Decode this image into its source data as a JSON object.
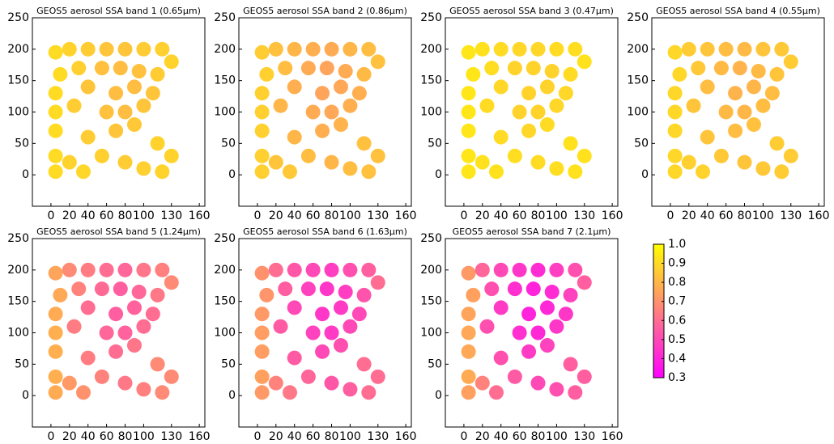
{
  "chart_data": [
    {
      "type": "scatter",
      "title": "GEOS5 aerosol SSA band 1 (0.65µm)",
      "x": [
        5,
        20,
        40,
        60,
        80,
        100,
        120,
        130,
        10,
        30,
        55,
        75,
        95,
        115,
        5,
        40,
        70,
        90,
        110,
        5,
        25,
        60,
        80,
        100,
        5,
        40,
        70,
        90,
        115,
        5,
        20,
        55,
        80,
        100,
        130,
        5,
        35,
        120
      ],
      "y": [
        195,
        200,
        200,
        200,
        200,
        200,
        200,
        180,
        160,
        170,
        170,
        170,
        165,
        160,
        130,
        140,
        130,
        140,
        130,
        100,
        110,
        100,
        100,
        110,
        70,
        60,
        70,
        80,
        50,
        30,
        20,
        30,
        20,
        10,
        30,
        5,
        5,
        5
      ],
      "values": [
        0.9,
        0.88,
        0.86,
        0.84,
        0.84,
        0.86,
        0.87,
        0.88,
        0.9,
        0.87,
        0.83,
        0.82,
        0.83,
        0.86,
        0.9,
        0.84,
        0.82,
        0.82,
        0.84,
        0.9,
        0.86,
        0.83,
        0.82,
        0.84,
        0.9,
        0.86,
        0.84,
        0.85,
        0.88,
        0.9,
        0.88,
        0.87,
        0.86,
        0.87,
        0.88,
        0.9,
        0.89,
        0.88
      ],
      "xlim": [
        -20,
        166
      ],
      "ylim": [
        -50,
        250
      ],
      "xticks": [
        0,
        20,
        40,
        60,
        80,
        100,
        130,
        160
      ],
      "yticks": [
        0,
        50,
        100,
        150,
        200,
        250
      ]
    },
    {
      "type": "scatter",
      "title": "GEOS5 aerosol SSA band 2 (0.86µm)",
      "x": [
        5,
        20,
        40,
        60,
        80,
        100,
        120,
        130,
        10,
        30,
        55,
        75,
        95,
        115,
        5,
        40,
        70,
        90,
        110,
        5,
        25,
        60,
        80,
        100,
        5,
        40,
        70,
        90,
        115,
        5,
        20,
        55,
        80,
        100,
        130,
        5,
        35,
        120
      ],
      "y": [
        195,
        200,
        200,
        200,
        200,
        200,
        200,
        180,
        160,
        170,
        170,
        170,
        165,
        160,
        130,
        140,
        130,
        140,
        130,
        100,
        110,
        100,
        100,
        110,
        70,
        60,
        70,
        80,
        50,
        30,
        20,
        30,
        20,
        10,
        30,
        5,
        5,
        5
      ],
      "values": [
        0.86,
        0.83,
        0.8,
        0.78,
        0.77,
        0.8,
        0.82,
        0.83,
        0.87,
        0.82,
        0.77,
        0.75,
        0.77,
        0.81,
        0.87,
        0.78,
        0.75,
        0.76,
        0.78,
        0.87,
        0.8,
        0.77,
        0.76,
        0.78,
        0.87,
        0.8,
        0.78,
        0.79,
        0.83,
        0.87,
        0.84,
        0.82,
        0.8,
        0.82,
        0.83,
        0.87,
        0.85,
        0.83
      ],
      "xlim": [
        -20,
        166
      ],
      "ylim": [
        -50,
        250
      ],
      "xticks": [
        0,
        20,
        40,
        60,
        80,
        100,
        130,
        160
      ],
      "yticks": [
        0,
        50,
        100,
        150,
        200,
        250
      ]
    },
    {
      "type": "scatter",
      "title": "GEOS5 aerosol SSA band 3 (0.47µm)",
      "x": [
        5,
        20,
        40,
        60,
        80,
        100,
        120,
        130,
        10,
        30,
        55,
        75,
        95,
        115,
        5,
        40,
        70,
        90,
        110,
        5,
        25,
        60,
        80,
        100,
        5,
        40,
        70,
        90,
        115,
        5,
        20,
        55,
        80,
        100,
        130,
        5,
        35,
        120
      ],
      "y": [
        195,
        200,
        200,
        200,
        200,
        200,
        200,
        180,
        160,
        170,
        170,
        170,
        165,
        160,
        130,
        140,
        130,
        140,
        130,
        100,
        110,
        100,
        100,
        110,
        70,
        60,
        70,
        80,
        50,
        30,
        20,
        30,
        20,
        10,
        30,
        5,
        5,
        5
      ],
      "values": [
        0.93,
        0.92,
        0.9,
        0.89,
        0.89,
        0.9,
        0.91,
        0.92,
        0.93,
        0.91,
        0.88,
        0.88,
        0.88,
        0.9,
        0.93,
        0.89,
        0.88,
        0.88,
        0.89,
        0.93,
        0.9,
        0.88,
        0.88,
        0.89,
        0.93,
        0.9,
        0.89,
        0.9,
        0.92,
        0.93,
        0.92,
        0.91,
        0.9,
        0.91,
        0.92,
        0.93,
        0.92,
        0.92
      ],
      "xlim": [
        -20,
        166
      ],
      "ylim": [
        -50,
        250
      ],
      "xticks": [
        0,
        20,
        40,
        60,
        80,
        100,
        130,
        160
      ],
      "yticks": [
        0,
        50,
        100,
        150,
        200,
        250
      ]
    },
    {
      "type": "scatter",
      "title": "GEOS5 aerosol SSA band 4 (0.55µm)",
      "x": [
        5,
        20,
        40,
        60,
        80,
        100,
        120,
        130,
        10,
        30,
        55,
        75,
        95,
        115,
        5,
        40,
        70,
        90,
        110,
        5,
        25,
        60,
        80,
        100,
        5,
        40,
        70,
        90,
        115,
        5,
        20,
        55,
        80,
        100,
        130,
        5,
        35,
        120
      ],
      "y": [
        195,
        200,
        200,
        200,
        200,
        200,
        200,
        180,
        160,
        170,
        170,
        170,
        165,
        160,
        130,
        140,
        130,
        140,
        130,
        100,
        110,
        100,
        100,
        110,
        70,
        60,
        70,
        80,
        50,
        30,
        20,
        30,
        20,
        10,
        30,
        5,
        5,
        5
      ],
      "values": [
        0.89,
        0.86,
        0.84,
        0.82,
        0.81,
        0.84,
        0.85,
        0.86,
        0.89,
        0.85,
        0.81,
        0.79,
        0.81,
        0.84,
        0.89,
        0.82,
        0.79,
        0.8,
        0.82,
        0.89,
        0.84,
        0.81,
        0.8,
        0.82,
        0.89,
        0.84,
        0.82,
        0.83,
        0.86,
        0.89,
        0.87,
        0.85,
        0.84,
        0.85,
        0.86,
        0.89,
        0.88,
        0.86
      ],
      "xlim": [
        -20,
        166
      ],
      "ylim": [
        -50,
        250
      ],
      "xticks": [
        0,
        20,
        40,
        60,
        80,
        100,
        130,
        160
      ],
      "yticks": [
        0,
        50,
        100,
        150,
        200,
        250
      ]
    },
    {
      "type": "scatter",
      "title": "GEOS5 aerosol SSA band 5 (1.24µm)",
      "x": [
        5,
        20,
        40,
        60,
        80,
        100,
        120,
        130,
        10,
        30,
        55,
        75,
        95,
        115,
        5,
        40,
        70,
        90,
        110,
        5,
        25,
        60,
        80,
        100,
        5,
        40,
        70,
        90,
        115,
        5,
        20,
        55,
        80,
        100,
        130,
        5,
        35,
        120
      ],
      "y": [
        195,
        200,
        200,
        200,
        200,
        200,
        200,
        180,
        160,
        170,
        170,
        170,
        165,
        160,
        130,
        140,
        130,
        140,
        130,
        100,
        110,
        100,
        100,
        110,
        70,
        60,
        70,
        80,
        50,
        30,
        20,
        30,
        20,
        10,
        30,
        5,
        5,
        5
      ],
      "values": [
        0.75,
        0.68,
        0.64,
        0.6,
        0.58,
        0.62,
        0.65,
        0.68,
        0.76,
        0.66,
        0.59,
        0.56,
        0.58,
        0.63,
        0.77,
        0.6,
        0.56,
        0.57,
        0.6,
        0.78,
        0.64,
        0.58,
        0.57,
        0.6,
        0.78,
        0.64,
        0.6,
        0.62,
        0.68,
        0.78,
        0.72,
        0.66,
        0.63,
        0.65,
        0.68,
        0.77,
        0.7,
        0.68
      ],
      "xlim": [
        -20,
        166
      ],
      "ylim": [
        -50,
        250
      ],
      "xticks": [
        0,
        20,
        40,
        60,
        80,
        100,
        130,
        160
      ],
      "yticks": [
        0,
        50,
        100,
        150,
        200,
        250
      ]
    },
    {
      "type": "scatter",
      "title": "GEOS5 aerosol SSA band 6 (1.63µm)",
      "x": [
        5,
        20,
        40,
        60,
        80,
        100,
        120,
        130,
        10,
        30,
        55,
        75,
        95,
        115,
        5,
        40,
        70,
        90,
        110,
        5,
        25,
        60,
        80,
        100,
        5,
        40,
        70,
        90,
        115,
        5,
        20,
        55,
        80,
        100,
        130,
        5,
        35,
        120
      ],
      "y": [
        195,
        200,
        200,
        200,
        200,
        200,
        200,
        180,
        160,
        170,
        170,
        170,
        165,
        160,
        130,
        140,
        130,
        140,
        130,
        100,
        110,
        100,
        100,
        110,
        70,
        60,
        70,
        80,
        50,
        30,
        20,
        30,
        20,
        10,
        30,
        5,
        5,
        5
      ],
      "values": [
        0.7,
        0.6,
        0.54,
        0.5,
        0.47,
        0.52,
        0.56,
        0.6,
        0.71,
        0.56,
        0.48,
        0.45,
        0.47,
        0.53,
        0.72,
        0.5,
        0.45,
        0.46,
        0.5,
        0.73,
        0.55,
        0.48,
        0.46,
        0.5,
        0.73,
        0.55,
        0.5,
        0.52,
        0.6,
        0.74,
        0.66,
        0.58,
        0.54,
        0.56,
        0.6,
        0.72,
        0.63,
        0.6
      ],
      "xlim": [
        -20,
        166
      ],
      "ylim": [
        -50,
        250
      ],
      "xticks": [
        0,
        20,
        40,
        60,
        80,
        100,
        130,
        160
      ],
      "yticks": [
        0,
        50,
        100,
        150,
        200,
        250
      ]
    },
    {
      "type": "scatter",
      "title": "GEOS5 aerosol SSA band 7 (2.1µm)",
      "x": [
        5,
        20,
        40,
        60,
        80,
        100,
        120,
        130,
        10,
        30,
        55,
        75,
        95,
        115,
        5,
        40,
        70,
        90,
        110,
        5,
        25,
        60,
        80,
        100,
        5,
        40,
        70,
        90,
        115,
        5,
        20,
        55,
        80,
        100,
        130,
        5,
        35,
        120
      ],
      "y": [
        195,
        200,
        200,
        200,
        200,
        200,
        200,
        180,
        160,
        170,
        170,
        170,
        165,
        160,
        130,
        140,
        130,
        140,
        130,
        100,
        110,
        100,
        100,
        110,
        70,
        60,
        70,
        80,
        50,
        30,
        20,
        30,
        20,
        10,
        30,
        5,
        5,
        5
      ],
      "values": [
        0.72,
        0.58,
        0.5,
        0.45,
        0.42,
        0.47,
        0.52,
        0.56,
        0.74,
        0.52,
        0.43,
        0.4,
        0.42,
        0.48,
        0.75,
        0.46,
        0.4,
        0.41,
        0.45,
        0.76,
        0.52,
        0.43,
        0.41,
        0.45,
        0.76,
        0.52,
        0.46,
        0.48,
        0.56,
        0.77,
        0.66,
        0.55,
        0.5,
        0.52,
        0.56,
        0.74,
        0.6,
        0.56
      ],
      "xlim": [
        -20,
        166
      ],
      "ylim": [
        -50,
        250
      ],
      "xticks": [
        0,
        20,
        40,
        60,
        80,
        100,
        130,
        160
      ],
      "yticks": [
        0,
        50,
        100,
        150,
        200,
        250
      ],
      "colorbar": {
        "cmap": [
          "#ff00ff",
          "#ffff00"
        ],
        "lim": [
          0.3,
          1
        ],
        "ticks": [
          0.3,
          0.4,
          0.5,
          0.6,
          0.7,
          0.8,
          0.9,
          {
            "value": 1,
            "label": "1.0"
          }
        ]
      }
    }
  ]
}
